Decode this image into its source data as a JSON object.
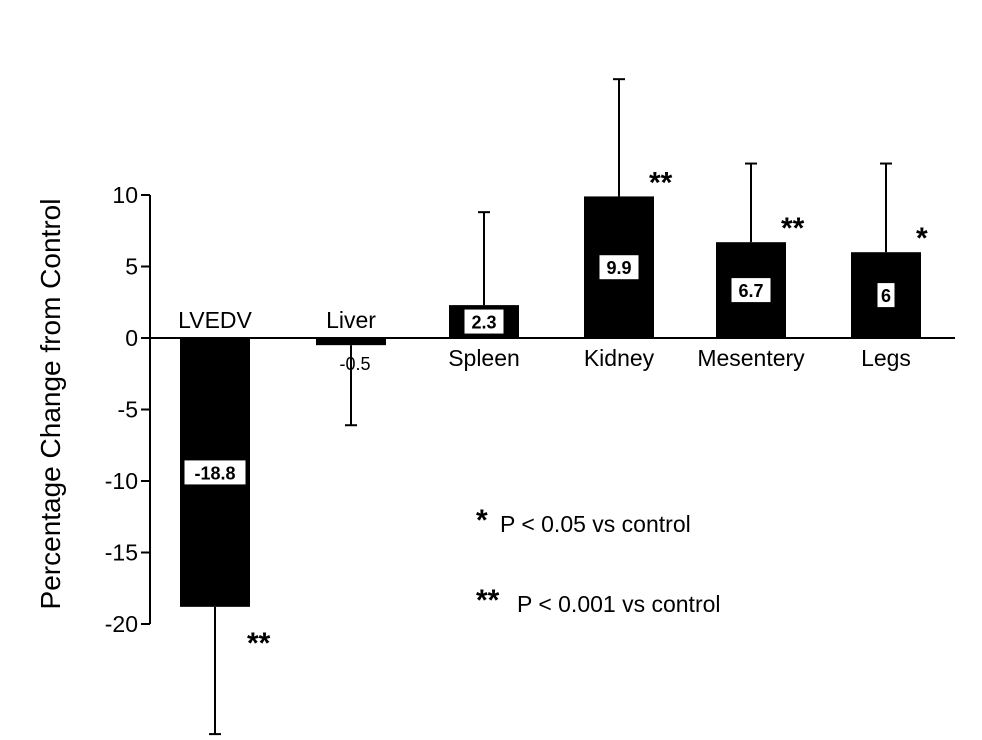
{
  "chart_data": {
    "type": "bar",
    "ylabel": "Percentage Change from Control",
    "ylim": [
      -20,
      10
    ],
    "yticks": [
      "10",
      "5",
      "0",
      "-5",
      "-10",
      "-15",
      "-20"
    ],
    "ytick_values": [
      10,
      5,
      0,
      -5,
      -10,
      -15,
      -20
    ],
    "categories": [
      "LVEDV",
      "Liver",
      "Spleen",
      "Kidney",
      "Mesentery",
      "Legs"
    ],
    "values": [
      -18.8,
      -0.5,
      2.3,
      9.9,
      6.7,
      6.0
    ],
    "value_labels": [
      "-18.8",
      "-0.5",
      "2.3",
      "9.9",
      "6.7",
      "6"
    ],
    "error_bars": [
      8.9,
      5.6,
      6.5,
      8.2,
      5.5,
      6.2
    ],
    "significance": [
      "**",
      "",
      "",
      "**",
      "**",
      "*"
    ],
    "legend": [
      {
        "marker": "*",
        "text": "P < 0.05 vs control"
      },
      {
        "marker": "**",
        "text": "P < 0.001 vs control"
      }
    ],
    "bar_color": "#000000"
  }
}
